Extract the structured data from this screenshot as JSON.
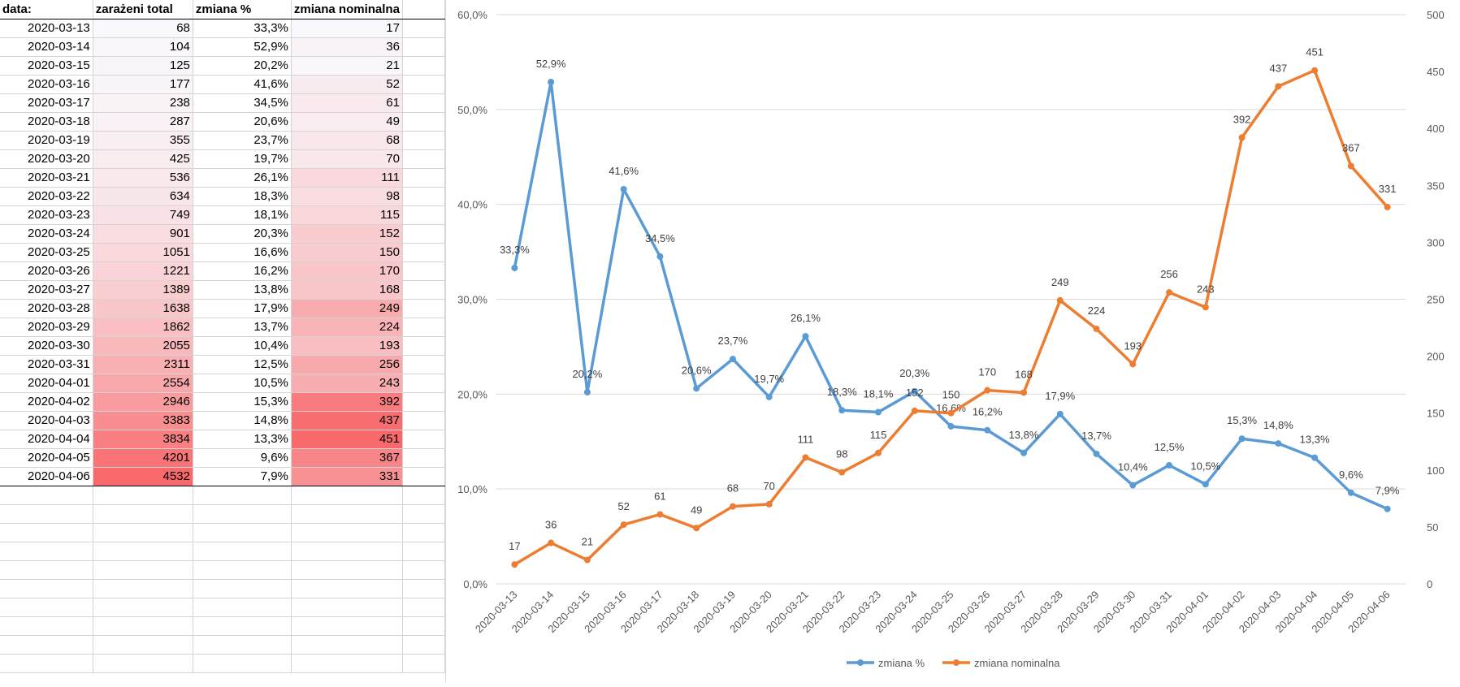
{
  "table": {
    "headers": [
      "data:",
      "zarażeni total",
      "zmiana %",
      "zmiana nominalna"
    ],
    "rows": [
      [
        "2020-03-13",
        "68",
        "33,3%",
        "17"
      ],
      [
        "2020-03-14",
        "104",
        "52,9%",
        "36"
      ],
      [
        "2020-03-15",
        "125",
        "20,2%",
        "21"
      ],
      [
        "2020-03-16",
        "177",
        "41,6%",
        "52"
      ],
      [
        "2020-03-17",
        "238",
        "34,5%",
        "61"
      ],
      [
        "2020-03-18",
        "287",
        "20,6%",
        "49"
      ],
      [
        "2020-03-19",
        "355",
        "23,7%",
        "68"
      ],
      [
        "2020-03-20",
        "425",
        "19,7%",
        "70"
      ],
      [
        "2020-03-21",
        "536",
        "26,1%",
        "111"
      ],
      [
        "2020-03-22",
        "634",
        "18,3%",
        "98"
      ],
      [
        "2020-03-23",
        "749",
        "18,1%",
        "115"
      ],
      [
        "2020-03-24",
        "901",
        "20,3%",
        "152"
      ],
      [
        "2020-03-25",
        "1051",
        "16,6%",
        "150"
      ],
      [
        "2020-03-26",
        "1221",
        "16,2%",
        "170"
      ],
      [
        "2020-03-27",
        "1389",
        "13,8%",
        "168"
      ],
      [
        "2020-03-28",
        "1638",
        "17,9%",
        "249"
      ],
      [
        "2020-03-29",
        "1862",
        "13,7%",
        "224"
      ],
      [
        "2020-03-30",
        "2055",
        "10,4%",
        "193"
      ],
      [
        "2020-03-31",
        "2311",
        "12,5%",
        "256"
      ],
      [
        "2020-04-01",
        "2554",
        "10,5%",
        "243"
      ],
      [
        "2020-04-02",
        "2946",
        "15,3%",
        "392"
      ],
      [
        "2020-04-03",
        "3383",
        "14,8%",
        "437"
      ],
      [
        "2020-04-04",
        "3834",
        "13,3%",
        "451"
      ],
      [
        "2020-04-05",
        "4201",
        "9,6%",
        "367"
      ],
      [
        "2020-04-06",
        "4532",
        "7,9%",
        "331"
      ]
    ]
  },
  "colors": {
    "heat_low": "#f9f8fc",
    "heat_high": "#f8696b",
    "series_pct": "#5b9bd5",
    "series_nom": "#ed7d31",
    "gridline": "#d9d9d9",
    "axis_text": "#595959"
  },
  "chart_data": {
    "type": "line",
    "x": [
      "2020-03-13",
      "2020-03-14",
      "2020-03-15",
      "2020-03-16",
      "2020-03-17",
      "2020-03-18",
      "2020-03-19",
      "2020-03-20",
      "2020-03-21",
      "2020-03-22",
      "2020-03-23",
      "2020-03-24",
      "2020-03-25",
      "2020-03-26",
      "2020-03-27",
      "2020-03-28",
      "2020-03-29",
      "2020-03-30",
      "2020-03-31",
      "2020-04-01",
      "2020-04-02",
      "2020-04-03",
      "2020-04-04",
      "2020-04-05",
      "2020-04-06"
    ],
    "series": [
      {
        "name": "zmiana %",
        "axis": "left",
        "values": [
          33.3,
          52.9,
          20.2,
          41.6,
          34.5,
          20.6,
          23.7,
          19.7,
          26.1,
          18.3,
          18.1,
          20.3,
          16.6,
          16.2,
          13.8,
          17.9,
          13.7,
          10.4,
          12.5,
          10.5,
          15.3,
          14.8,
          13.3,
          9.6,
          7.9
        ],
        "labels": [
          "33,3%",
          "52,9%",
          "20,2%",
          "41,6%",
          "34,5%",
          "20,6%",
          "23,7%",
          "19,7%",
          "26,1%",
          "18,3%",
          "18,1%",
          "20,3%",
          "16,6%",
          "16,2%",
          "13,8%",
          "17,9%",
          "13,7%",
          "10,4%",
          "12,5%",
          "10,5%",
          "15,3%",
          "14,8%",
          "13,3%",
          "9,6%",
          "7,9%"
        ]
      },
      {
        "name": "zmiana nominalna",
        "axis": "right",
        "values": [
          17,
          36,
          21,
          52,
          61,
          49,
          68,
          70,
          111,
          98,
          115,
          152,
          150,
          170,
          168,
          249,
          224,
          193,
          256,
          243,
          392,
          437,
          451,
          367,
          331
        ],
        "labels": [
          "17",
          "36",
          "21",
          "52",
          "61",
          "49",
          "68",
          "70",
          "111",
          "98",
          "115",
          "152",
          "150",
          "170",
          "168",
          "249",
          "224",
          "193",
          "256",
          "243",
          "392",
          "437",
          "451",
          "367",
          "331"
        ]
      }
    ],
    "y_left": {
      "range": [
        0,
        60
      ],
      "ticks": [
        "0,0%",
        "10,0%",
        "20,0%",
        "30,0%",
        "40,0%",
        "50,0%",
        "60,0%"
      ]
    },
    "y_right": {
      "range": [
        0,
        500
      ],
      "ticks": [
        "0",
        "50",
        "100",
        "150",
        "200",
        "250",
        "300",
        "350",
        "400",
        "450",
        "500"
      ]
    },
    "grid": true,
    "legend": "bottom"
  }
}
